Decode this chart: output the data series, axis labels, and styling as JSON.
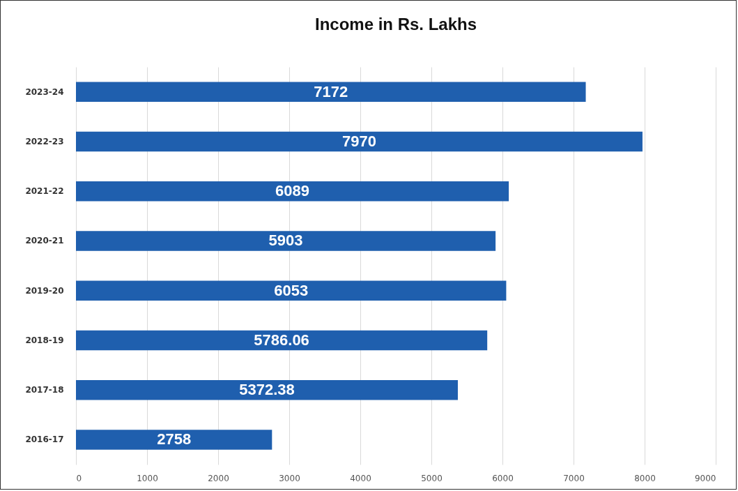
{
  "chart_data": {
    "type": "bar",
    "orientation": "horizontal",
    "title": "Income in Rs. Lakhs",
    "categories": [
      "2023-24",
      "2022-23",
      "2021-22",
      "2020-21",
      "2019-20",
      "2018-19",
      "2017-18",
      "2016-17"
    ],
    "values": [
      7172,
      7970,
      6089,
      5903,
      6053,
      5786.06,
      5372.38,
      2758
    ],
    "color": "#1f5fae",
    "xlim": [
      0,
      9000
    ],
    "xticks": [
      0,
      1000,
      2000,
      3000,
      4000,
      5000,
      6000,
      7000,
      8000,
      9000
    ],
    "grid": "x",
    "data_labels": true
  }
}
